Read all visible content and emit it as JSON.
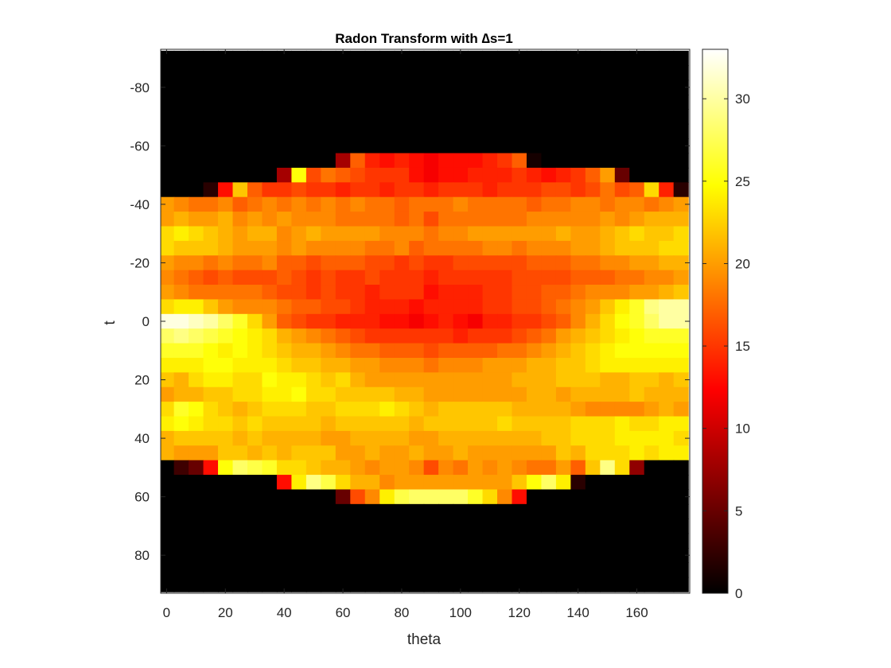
{
  "chart_data": {
    "type": "heatmap",
    "title": "Radon Transform with ∆s=1",
    "xlabel": "theta",
    "ylabel": "t",
    "x_range": [
      -2,
      178
    ],
    "y_range": [
      -93,
      93
    ],
    "y_direction": "reverse",
    "x_ticks": [
      0,
      20,
      40,
      60,
      80,
      100,
      120,
      140,
      160
    ],
    "y_ticks": [
      -80,
      -60,
      -40,
      -20,
      0,
      20,
      40,
      60,
      80
    ],
    "colormap": "hot",
    "colorbar": {
      "range": [
        0,
        33
      ],
      "ticks": [
        0,
        5,
        10,
        15,
        20,
        25,
        30
      ],
      "placement": "right"
    },
    "theta_step": 5,
    "t_step": 5,
    "theta": [
      0,
      5,
      10,
      15,
      20,
      25,
      30,
      35,
      40,
      45,
      50,
      55,
      60,
      65,
      70,
      75,
      80,
      85,
      90,
      95,
      100,
      105,
      110,
      115,
      120,
      125,
      130,
      135,
      140,
      145,
      150,
      155,
      160,
      165,
      170,
      175
    ],
    "t": [
      -90,
      -85,
      -80,
      -75,
      -70,
      -65,
      -60,
      -55,
      -50,
      -45,
      -40,
      -35,
      -30,
      -25,
      -20,
      -15,
      -10,
      -5,
      0,
      5,
      10,
      15,
      20,
      25,
      30,
      35,
      40,
      45,
      50,
      55,
      60,
      65,
      70,
      75,
      80,
      85,
      90
    ],
    "values": [
      [
        0,
        0,
        0,
        0,
        0,
        0,
        0,
        0,
        0,
        0,
        0,
        0,
        0,
        0,
        0,
        0,
        0,
        0,
        0,
        0,
        0,
        0,
        0,
        0,
        0,
        0,
        0,
        0,
        0,
        0,
        0,
        0,
        0,
        0,
        0,
        0
      ],
      [
        0,
        0,
        0,
        0,
        0,
        0,
        0,
        0,
        0,
        0,
        0,
        0,
        0,
        0,
        0,
        0,
        0,
        0,
        0,
        0,
        0,
        0,
        0,
        0,
        0,
        0,
        0,
        0,
        0,
        0,
        0,
        0,
        0,
        0,
        0,
        0
      ],
      [
        0,
        0,
        0,
        0,
        0,
        0,
        0,
        0,
        0,
        0,
        0,
        0,
        0,
        0,
        0,
        0,
        0,
        0,
        0,
        0,
        0,
        0,
        0,
        0,
        0,
        0,
        0,
        0,
        0,
        0,
        0,
        0,
        0,
        0,
        0,
        0
      ],
      [
        0,
        0,
        0,
        0,
        0,
        0,
        0,
        0,
        0,
        0,
        0,
        0,
        0,
        0,
        0,
        0,
        0,
        0,
        0,
        0,
        0,
        0,
        0,
        0,
        0,
        0,
        0,
        0,
        0,
        0,
        0,
        0,
        0,
        0,
        0,
        0
      ],
      [
        0,
        0,
        0,
        0,
        0,
        0,
        0,
        0,
        0,
        0,
        0,
        0,
        0,
        0,
        0,
        0,
        0,
        0,
        0,
        0,
        0,
        0,
        0,
        0,
        0,
        0,
        0,
        0,
        0,
        0,
        0,
        0,
        0,
        0,
        0,
        0
      ],
      [
        0,
        0,
        0,
        0,
        0,
        0,
        0,
        0,
        0,
        0,
        0,
        0,
        0,
        0,
        0,
        0,
        0,
        0,
        0,
        0,
        0,
        0,
        0,
        0,
        0,
        0,
        0,
        0,
        0,
        0,
        0,
        0,
        0,
        0,
        0,
        0
      ],
      [
        0,
        0,
        0,
        0,
        0,
        0,
        0,
        0,
        0,
        0,
        0,
        0,
        0,
        0,
        0,
        0,
        0,
        0,
        0,
        0,
        0,
        0,
        0,
        0,
        0,
        0,
        0,
        0,
        0,
        0,
        0,
        0,
        0,
        0,
        0,
        0
      ],
      [
        0,
        0,
        0,
        0,
        0,
        0,
        0,
        0,
        0,
        0,
        0,
        0,
        8,
        17,
        14,
        13,
        14,
        13,
        12,
        13,
        13,
        13,
        14,
        15,
        17,
        1,
        0,
        0,
        0,
        0,
        0,
        0,
        0,
        0,
        0,
        0
      ],
      [
        0,
        0,
        0,
        0,
        0,
        0,
        0,
        0,
        8,
        25,
        16,
        18,
        17,
        16,
        15,
        15,
        15,
        13,
        12,
        13,
        13,
        14,
        14,
        14,
        15,
        14,
        13,
        14,
        15,
        17,
        20,
        5,
        0,
        0,
        0,
        0
      ],
      [
        0,
        0,
        0,
        2,
        13,
        22,
        17,
        15,
        15,
        16,
        15,
        15,
        14,
        15,
        15,
        14,
        15,
        15,
        14,
        15,
        15,
        15,
        14,
        15,
        15,
        15,
        16,
        16,
        15,
        16,
        18,
        16,
        17,
        23,
        14,
        2
      ],
      [
        20,
        19,
        18,
        18,
        19,
        17,
        18,
        19,
        18,
        19,
        18,
        19,
        18,
        19,
        18,
        18,
        17,
        18,
        18,
        18,
        19,
        18,
        18,
        18,
        18,
        17,
        18,
        18,
        19,
        19,
        18,
        19,
        19,
        18,
        19,
        20
      ],
      [
        20,
        21,
        20,
        20,
        21,
        19,
        20,
        19,
        20,
        19,
        19,
        19,
        18,
        18,
        18,
        18,
        17,
        18,
        16,
        18,
        18,
        18,
        18,
        18,
        18,
        19,
        19,
        19,
        19,
        19,
        20,
        19,
        20,
        21,
        21,
        21
      ],
      [
        23,
        24,
        23,
        22,
        21,
        20,
        21,
        21,
        19,
        20,
        21,
        20,
        20,
        20,
        20,
        19,
        19,
        19,
        18,
        19,
        19,
        20,
        20,
        20,
        20,
        20,
        20,
        21,
        20,
        20,
        21,
        22,
        23,
        22,
        22,
        23
      ],
      [
        23,
        22,
        22,
        22,
        21,
        20,
        20,
        20,
        19,
        20,
        19,
        19,
        19,
        19,
        18,
        18,
        19,
        17,
        18,
        18,
        18,
        18,
        19,
        19,
        18,
        19,
        19,
        19,
        20,
        20,
        21,
        22,
        22,
        22,
        23,
        23
      ],
      [
        20,
        19,
        19,
        18,
        19,
        18,
        18,
        19,
        17,
        17,
        16,
        17,
        17,
        17,
        16,
        16,
        15,
        16,
        15,
        15,
        16,
        16,
        16,
        16,
        16,
        17,
        17,
        17,
        18,
        18,
        19,
        19,
        20,
        20,
        21,
        21
      ],
      [
        19,
        18,
        17,
        16,
        17,
        16,
        16,
        16,
        17,
        16,
        15,
        16,
        15,
        15,
        16,
        15,
        15,
        15,
        14,
        15,
        15,
        15,
        15,
        15,
        16,
        16,
        16,
        16,
        17,
        17,
        17,
        18,
        18,
        19,
        19,
        20
      ],
      [
        20,
        19,
        18,
        18,
        18,
        18,
        18,
        17,
        16,
        16,
        15,
        16,
        15,
        15,
        14,
        15,
        15,
        15,
        13,
        14,
        14,
        14,
        15,
        15,
        16,
        16,
        17,
        17,
        18,
        19,
        19,
        19,
        20,
        20,
        21,
        22
      ],
      [
        23,
        24,
        24,
        22,
        20,
        19,
        19,
        19,
        18,
        17,
        17,
        16,
        16,
        15,
        14,
        14,
        14,
        13,
        14,
        14,
        14,
        14,
        15,
        15,
        16,
        16,
        17,
        18,
        19,
        20,
        22,
        24,
        26,
        29,
        30,
        30
      ],
      [
        32,
        32,
        31,
        30,
        28,
        26,
        23,
        20,
        17,
        16,
        15,
        15,
        14,
        14,
        14,
        13,
        13,
        12,
        13,
        14,
        13,
        12,
        14,
        14,
        15,
        15,
        16,
        17,
        19,
        21,
        23,
        25,
        26,
        28,
        30,
        30
      ],
      [
        28,
        29,
        28,
        27,
        26,
        25,
        24,
        23,
        21,
        20,
        19,
        18,
        17,
        16,
        15,
        15,
        15,
        15,
        15,
        15,
        14,
        15,
        15,
        15,
        16,
        17,
        18,
        20,
        21,
        22,
        23,
        24,
        25,
        26,
        26,
        26
      ],
      [
        26,
        26,
        26,
        25,
        24,
        25,
        24,
        23,
        22,
        21,
        21,
        20,
        19,
        18,
        18,
        17,
        17,
        17,
        16,
        17,
        17,
        17,
        17,
        18,
        18,
        19,
        20,
        21,
        22,
        23,
        24,
        25,
        25,
        25,
        25,
        25
      ],
      [
        24,
        24,
        24,
        25,
        25,
        24,
        24,
        24,
        23,
        22,
        22,
        21,
        21,
        20,
        20,
        19,
        19,
        19,
        18,
        19,
        19,
        19,
        20,
        20,
        20,
        21,
        21,
        22,
        22,
        23,
        24,
        24,
        24,
        24,
        24,
        24
      ],
      [
        22,
        21,
        23,
        24,
        24,
        23,
        23,
        25,
        24,
        24,
        23,
        22,
        23,
        21,
        20,
        20,
        20,
        20,
        20,
        20,
        20,
        20,
        20,
        20,
        21,
        21,
        21,
        22,
        22,
        22,
        21,
        21,
        22,
        22,
        21,
        22
      ],
      [
        20,
        21,
        21,
        22,
        22,
        23,
        23,
        24,
        24,
        25,
        23,
        23,
        22,
        22,
        22,
        22,
        21,
        21,
        20,
        20,
        20,
        20,
        20,
        20,
        20,
        21,
        21,
        20,
        21,
        21,
        21,
        21,
        22,
        21,
        21,
        21
      ],
      [
        23,
        26,
        25,
        23,
        22,
        21,
        22,
        23,
        23,
        23,
        22,
        22,
        23,
        23,
        23,
        24,
        23,
        22,
        21,
        22,
        22,
        22,
        22,
        22,
        21,
        21,
        21,
        21,
        20,
        19,
        19,
        19,
        19,
        20,
        21,
        20
      ],
      [
        24,
        25,
        24,
        23,
        23,
        22,
        23,
        22,
        22,
        22,
        22,
        21,
        22,
        22,
        22,
        22,
        22,
        21,
        22,
        22,
        22,
        22,
        22,
        23,
        22,
        22,
        22,
        22,
        23,
        23,
        23,
        24,
        23,
        23,
        24,
        24
      ],
      [
        21,
        22,
        22,
        22,
        22,
        21,
        22,
        21,
        21,
        21,
        21,
        20,
        20,
        21,
        21,
        21,
        21,
        20,
        20,
        21,
        21,
        21,
        21,
        21,
        21,
        21,
        22,
        22,
        23,
        23,
        23,
        24,
        24,
        24,
        24,
        23
      ],
      [
        21,
        20,
        20,
        20,
        22,
        22,
        21,
        22,
        21,
        22,
        22,
        22,
        20,
        20,
        21,
        20,
        20,
        21,
        20,
        20,
        21,
        20,
        20,
        20,
        20,
        20,
        20,
        22,
        21,
        23,
        23,
        23,
        24,
        23,
        24,
        24
      ],
      [
        0,
        3,
        5,
        13,
        25,
        28,
        27,
        26,
        23,
        23,
        22,
        21,
        21,
        20,
        19,
        20,
        20,
        19,
        16,
        19,
        18,
        20,
        19,
        20,
        19,
        18,
        18,
        20,
        17,
        22,
        29,
        23,
        7,
        0,
        0,
        0
      ],
      [
        0,
        0,
        0,
        0,
        0,
        0,
        0,
        0,
        13,
        24,
        29,
        27,
        23,
        21,
        21,
        19,
        20,
        20,
        20,
        20,
        20,
        20,
        20,
        20,
        22,
        25,
        28,
        24,
        2,
        0,
        0,
        0,
        0,
        0,
        0,
        0
      ],
      [
        0,
        0,
        0,
        0,
        0,
        0,
        0,
        0,
        0,
        0,
        0,
        0,
        5,
        16,
        19,
        24,
        27,
        28,
        28,
        28,
        28,
        26,
        23,
        19,
        13,
        0,
        0,
        0,
        0,
        0,
        0,
        0,
        0,
        0,
        0,
        0
      ],
      [
        0,
        0,
        0,
        0,
        0,
        0,
        0,
        0,
        0,
        0,
        0,
        0,
        0,
        0,
        0,
        0,
        0,
        0,
        0,
        0,
        0,
        0,
        0,
        0,
        0,
        0,
        0,
        0,
        0,
        0,
        0,
        0,
        0,
        0,
        0,
        0
      ],
      [
        0,
        0,
        0,
        0,
        0,
        0,
        0,
        0,
        0,
        0,
        0,
        0,
        0,
        0,
        0,
        0,
        0,
        0,
        0,
        0,
        0,
        0,
        0,
        0,
        0,
        0,
        0,
        0,
        0,
        0,
        0,
        0,
        0,
        0,
        0,
        0
      ],
      [
        0,
        0,
        0,
        0,
        0,
        0,
        0,
        0,
        0,
        0,
        0,
        0,
        0,
        0,
        0,
        0,
        0,
        0,
        0,
        0,
        0,
        0,
        0,
        0,
        0,
        0,
        0,
        0,
        0,
        0,
        0,
        0,
        0,
        0,
        0,
        0
      ],
      [
        0,
        0,
        0,
        0,
        0,
        0,
        0,
        0,
        0,
        0,
        0,
        0,
        0,
        0,
        0,
        0,
        0,
        0,
        0,
        0,
        0,
        0,
        0,
        0,
        0,
        0,
        0,
        0,
        0,
        0,
        0,
        0,
        0,
        0,
        0,
        0
      ],
      [
        0,
        0,
        0,
        0,
        0,
        0,
        0,
        0,
        0,
        0,
        0,
        0,
        0,
        0,
        0,
        0,
        0,
        0,
        0,
        0,
        0,
        0,
        0,
        0,
        0,
        0,
        0,
        0,
        0,
        0,
        0,
        0,
        0,
        0,
        0,
        0
      ],
      [
        0,
        0,
        0,
        0,
        0,
        0,
        0,
        0,
        0,
        0,
        0,
        0,
        0,
        0,
        0,
        0,
        0,
        0,
        0,
        0,
        0,
        0,
        0,
        0,
        0,
        0,
        0,
        0,
        0,
        0,
        0,
        0,
        0,
        0,
        0,
        0
      ]
    ]
  }
}
